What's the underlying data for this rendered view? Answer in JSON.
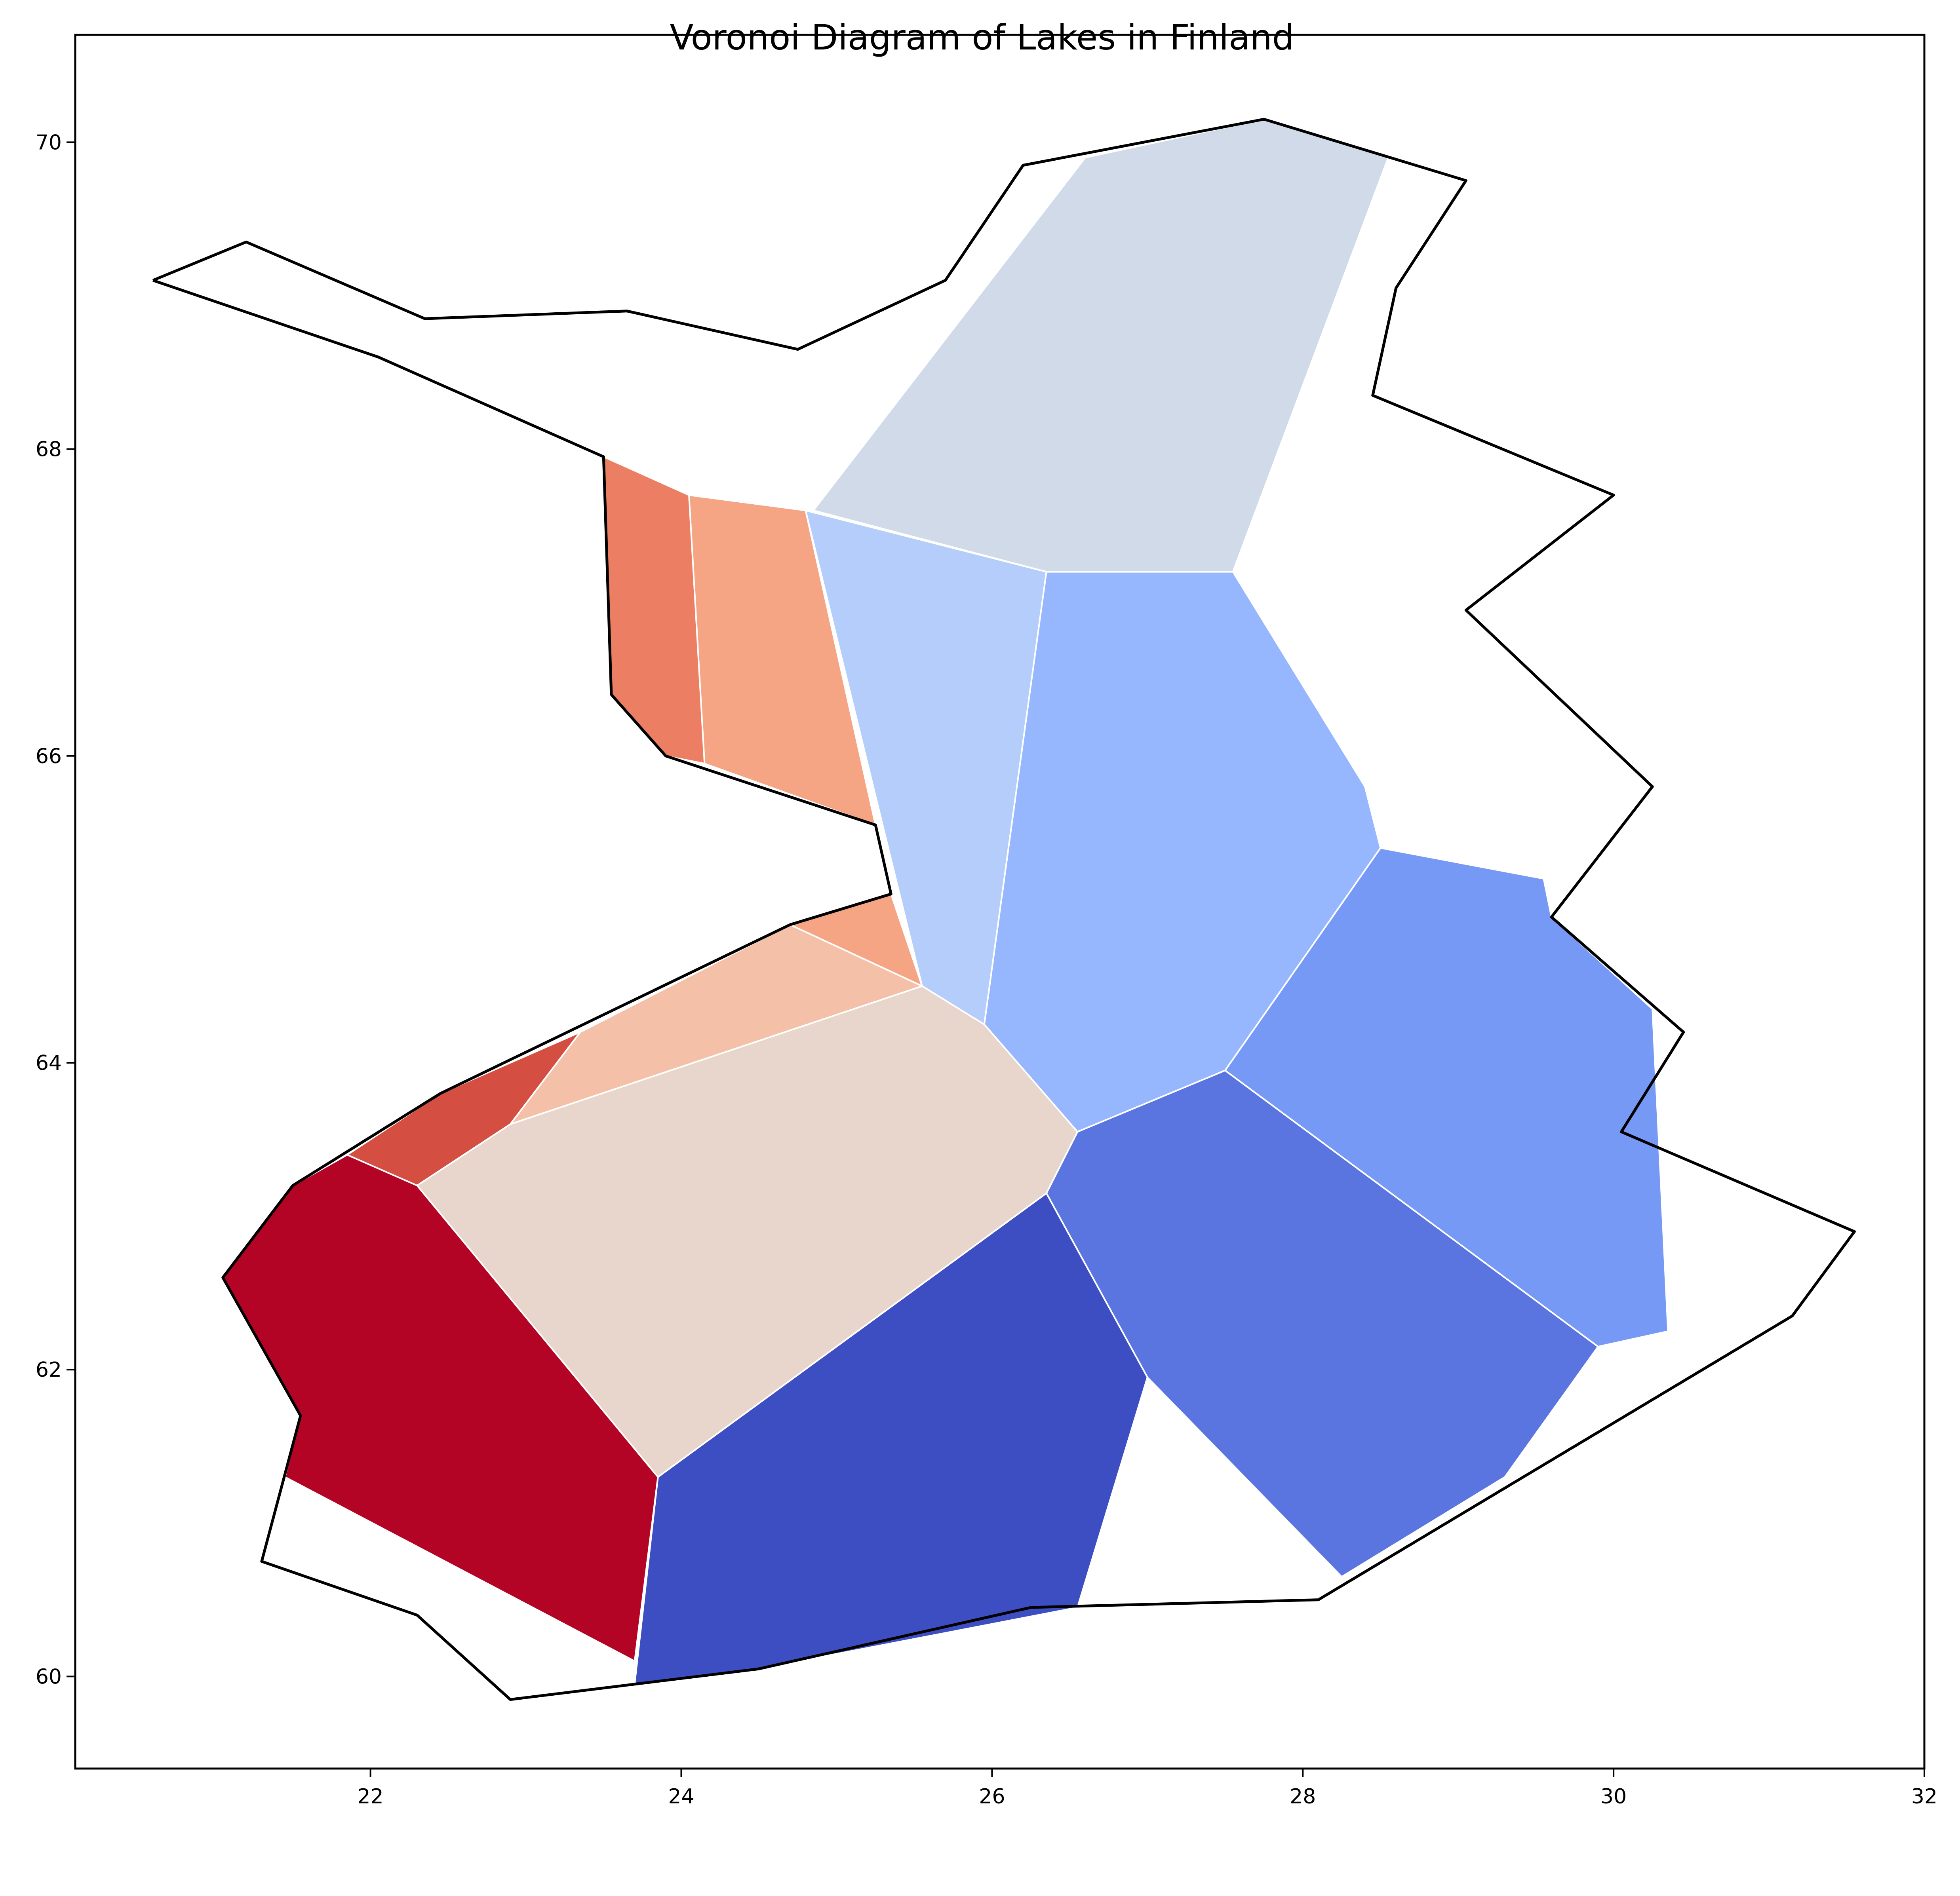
{
  "chart_data": {
    "type": "voronoi",
    "title": "Voronoi Diagram of Lakes in Finland",
    "xlabel": "",
    "ylabel": "",
    "xlim": [
      20.1,
      32.0
    ],
    "ylim": [
      59.4,
      70.7
    ],
    "xticks": [
      22,
      24,
      26,
      28,
      30,
      32
    ],
    "yticks": [
      60,
      62,
      64,
      66,
      68,
      70
    ],
    "grid": false,
    "outline_color": "#000000",
    "cell_edge_color": "#ffffff",
    "outline": [
      [
        20.6,
        69.1
      ],
      [
        21.2,
        69.35
      ],
      [
        22.35,
        68.85
      ],
      [
        23.65,
        68.9
      ],
      [
        24.75,
        68.65
      ],
      [
        25.7,
        69.1
      ],
      [
        26.2,
        69.85
      ],
      [
        27.75,
        70.15
      ],
      [
        29.05,
        69.75
      ],
      [
        28.6,
        69.05
      ],
      [
        28.45,
        68.35
      ],
      [
        30.0,
        67.7
      ],
      [
        29.05,
        66.95
      ],
      [
        30.25,
        65.8
      ],
      [
        29.6,
        64.95
      ],
      [
        30.45,
        64.2
      ],
      [
        30.05,
        63.55
      ],
      [
        31.55,
        62.9
      ],
      [
        31.15,
        62.35
      ],
      [
        28.1,
        60.5
      ],
      [
        26.25,
        60.45
      ],
      [
        24.5,
        60.05
      ],
      [
        22.9,
        59.85
      ],
      [
        22.3,
        60.4
      ],
      [
        21.3,
        60.75
      ],
      [
        21.55,
        61.7
      ],
      [
        21.05,
        62.6
      ],
      [
        21.5,
        63.2
      ],
      [
        22.45,
        63.8
      ],
      [
        24.7,
        64.9
      ],
      [
        25.35,
        65.1
      ],
      [
        25.25,
        65.55
      ],
      [
        23.9,
        66.0
      ],
      [
        23.55,
        66.4
      ],
      [
        23.5,
        67.95
      ],
      [
        22.05,
        68.6
      ],
      [
        20.6,
        69.1
      ]
    ],
    "cells": [
      {
        "color": "#d0dae9",
        "polygon": [
          [
            24.85,
            67.6
          ],
          [
            26.6,
            69.9
          ],
          [
            27.75,
            70.15
          ],
          [
            28.55,
            69.9
          ],
          [
            27.55,
            67.2
          ],
          [
            26.35,
            67.2
          ]
        ]
      },
      {
        "color": "#ec7f63",
        "polygon": [
          [
            23.5,
            67.95
          ],
          [
            24.05,
            67.7
          ],
          [
            24.15,
            65.95
          ],
          [
            23.9,
            66.0
          ],
          [
            23.55,
            66.4
          ]
        ]
      },
      {
        "color": "#f5a584",
        "polygon": [
          [
            24.05,
            67.7
          ],
          [
            24.8,
            67.6
          ],
          [
            25.25,
            65.55
          ],
          [
            24.15,
            65.95
          ]
        ]
      },
      {
        "color": "#f5a584",
        "polygon": [
          [
            24.7,
            64.9
          ],
          [
            25.35,
            65.1
          ],
          [
            25.55,
            64.5
          ]
        ]
      },
      {
        "color": "#b5cdfa",
        "polygon": [
          [
            24.8,
            67.6
          ],
          [
            26.35,
            67.2
          ],
          [
            25.95,
            64.25
          ],
          [
            25.55,
            64.5
          ]
        ]
      },
      {
        "color": "#96b7fe",
        "polygon": [
          [
            26.35,
            67.2
          ],
          [
            27.55,
            67.2
          ],
          [
            28.4,
            65.8
          ],
          [
            28.5,
            65.4
          ],
          [
            27.5,
            63.95
          ],
          [
            26.55,
            63.55
          ],
          [
            25.95,
            64.25
          ]
        ]
      },
      {
        "color": "#7699f6",
        "polygon": [
          [
            28.5,
            65.4
          ],
          [
            29.55,
            65.2
          ],
          [
            29.6,
            64.95
          ],
          [
            30.25,
            64.35
          ],
          [
            30.35,
            62.25
          ],
          [
            29.9,
            62.15
          ],
          [
            27.5,
            63.95
          ]
        ]
      },
      {
        "color": "#5a75e0",
        "polygon": [
          [
            26.55,
            63.55
          ],
          [
            27.5,
            63.95
          ],
          [
            29.9,
            62.15
          ],
          [
            29.3,
            61.3
          ],
          [
            28.25,
            60.65
          ],
          [
            27.0,
            61.95
          ],
          [
            26.35,
            63.15
          ]
        ]
      },
      {
        "color": "#3c4ec1",
        "polygon": [
          [
            23.85,
            61.3
          ],
          [
            26.35,
            63.15
          ],
          [
            27.0,
            61.95
          ],
          [
            26.55,
            60.45
          ],
          [
            24.5,
            60.05
          ],
          [
            23.7,
            59.95
          ]
        ]
      },
      {
        "color": "#e8d6cc",
        "polygon": [
          [
            22.3,
            63.2
          ],
          [
            22.9,
            63.6
          ],
          [
            25.55,
            64.5
          ],
          [
            25.95,
            64.25
          ],
          [
            26.55,
            63.55
          ],
          [
            26.35,
            63.15
          ],
          [
            23.85,
            61.3
          ]
        ]
      },
      {
        "color": "#f4c1a8",
        "polygon": [
          [
            22.9,
            63.6
          ],
          [
            23.35,
            64.2
          ],
          [
            24.7,
            64.9
          ],
          [
            25.55,
            64.5
          ]
        ]
      },
      {
        "color": "#d44e41",
        "polygon": [
          [
            21.85,
            63.4
          ],
          [
            22.45,
            63.8
          ],
          [
            23.35,
            64.2
          ],
          [
            22.9,
            63.6
          ],
          [
            22.3,
            63.2
          ]
        ]
      },
      {
        "color": "#b40426",
        "polygon": [
          [
            21.05,
            62.6
          ],
          [
            21.55,
            61.7
          ],
          [
            21.45,
            61.3
          ],
          [
            23.7,
            60.1
          ],
          [
            23.85,
            61.3
          ],
          [
            22.3,
            63.2
          ],
          [
            21.85,
            63.4
          ],
          [
            21.5,
            63.2
          ]
        ]
      }
    ]
  }
}
